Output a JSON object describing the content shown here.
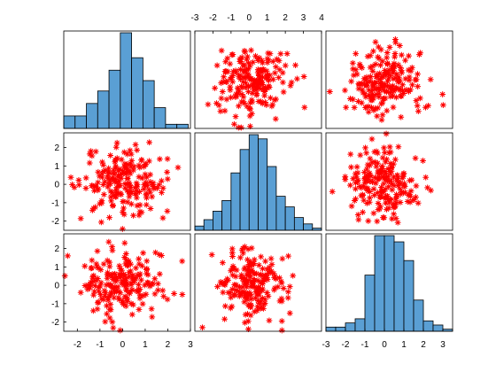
{
  "chart_data": {
    "type": "scatter-matrix",
    "variables": 3,
    "marker": "asterisk",
    "marker_color": "#ff0000",
    "hist_fill": "#5a9fd4",
    "hist_edge": "#000000",
    "grid": false,
    "axes": {
      "x": [
        {
          "range": [
            -2.6,
            3.0
          ],
          "ticks": [
            "-2",
            "-1",
            "0",
            "1",
            "2",
            "3"
          ],
          "ticks_side": "bottom"
        },
        {
          "range": [
            -3.0,
            4.0
          ],
          "ticks": [
            "-3",
            "-2",
            "-1",
            "0",
            "1",
            "2",
            "3",
            "4"
          ],
          "ticks_side": "top"
        },
        {
          "range": [
            -3.0,
            3.5
          ],
          "ticks": [
            "-3",
            "-2",
            "-1",
            "0",
            "1",
            "2",
            "3"
          ],
          "ticks_side": "bottom"
        }
      ],
      "y": [
        {
          "range": [
            -2.6,
            2.9
          ],
          "ticks": [],
          "ticks_side": "none"
        },
        {
          "range": [
            -2.5,
            2.8
          ],
          "ticks": [
            "2",
            "1",
            "0",
            "-1",
            "-2"
          ],
          "ticks_side": "left"
        },
        {
          "range": [
            -2.5,
            2.8
          ],
          "ticks": [
            "2",
            "1",
            "0",
            "-1",
            "-2"
          ],
          "ticks_side": "left"
        }
      ]
    },
    "histograms": [
      {
        "variable": 1,
        "bin_edges": [
          -2.6,
          -2.1,
          -1.6,
          -1.1,
          -0.6,
          -0.1,
          0.4,
          0.9,
          1.4,
          1.9,
          2.4,
          2.9
        ],
        "counts": [
          6,
          6,
          12,
          18,
          28,
          46,
          34,
          23,
          10,
          2,
          2
        ]
      },
      {
        "variable": 2,
        "bin_edges": [
          -3.0,
          -2.5,
          -2.0,
          -1.5,
          -1.0,
          -0.5,
          0.0,
          0.5,
          1.0,
          1.5,
          2.0,
          2.5,
          3.0,
          3.5,
          4.0
        ],
        "counts": [
          2,
          5,
          9,
          14,
          27,
          38,
          45,
          43,
          30,
          16,
          11,
          6,
          3,
          1
        ]
      },
      {
        "variable": 3,
        "bin_edges": [
          -3.0,
          -2.5,
          -2.0,
          -1.5,
          -1.0,
          -0.5,
          0.0,
          0.5,
          1.0,
          1.5,
          2.0,
          2.5,
          3.0,
          3.5
        ],
        "counts": [
          2,
          2,
          4,
          6,
          27,
          46,
          46,
          43,
          34,
          15,
          5,
          3,
          1
        ]
      }
    ],
    "scatter_seed": 7,
    "scatter_points_per_panel": 200,
    "scatter_sd": 0.95
  }
}
